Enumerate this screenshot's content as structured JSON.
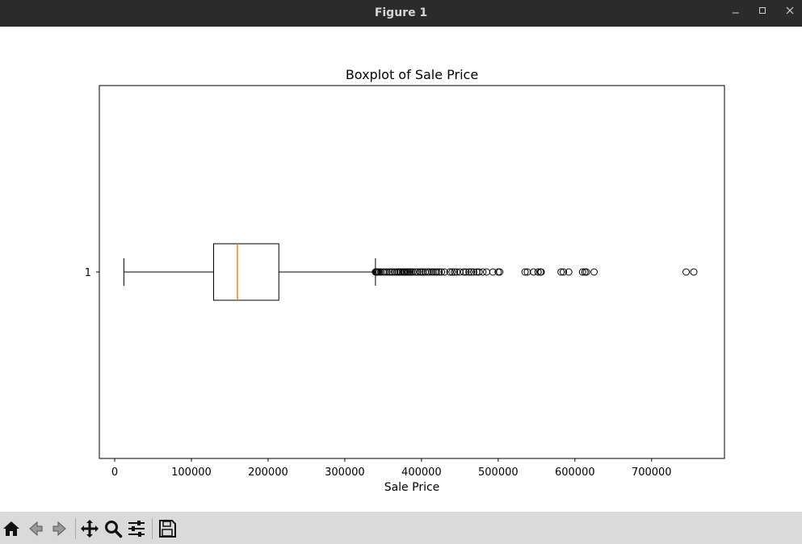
{
  "window": {
    "title": "Figure 1",
    "minimize_icon": "minimize-icon",
    "maximize_icon": "maximize-icon",
    "close_icon": "close-icon"
  },
  "toolbar": {
    "buttons": [
      "home-icon",
      "back-icon",
      "forward-icon",
      "pan-icon",
      "zoom-icon",
      "configure-subplots-icon",
      "save-icon"
    ]
  },
  "colors": {
    "titlebar": "#2b2b2b",
    "toolbar": "#dadada",
    "median": "#ff7f0e",
    "box": "#000000"
  },
  "chart_data": {
    "type": "boxplot",
    "orientation": "horizontal",
    "title": "Boxplot of Sale Price",
    "xlabel": "Sale Price",
    "ylabel": "",
    "xlim": [
      -20000,
      795000
    ],
    "ylim": [
      0.5,
      1.5
    ],
    "xticks": [
      0,
      100000,
      200000,
      300000,
      400000,
      500000,
      600000,
      700000
    ],
    "yticks": [
      1
    ],
    "ytick_labels": [
      "1"
    ],
    "grid": false,
    "series": [
      {
        "category": "1",
        "whisker_low": 12000,
        "q1": 129000,
        "median": 160000,
        "q3": 214000,
        "whisker_high": 340000,
        "outliers": [
          340000,
          341000,
          342000,
          343000,
          345000,
          347000,
          350000,
          352000,
          355000,
          358000,
          360000,
          362000,
          365000,
          368000,
          370000,
          372000,
          373000,
          375000,
          377000,
          378000,
          380000,
          382000,
          383000,
          385000,
          387000,
          389000,
          392000,
          395000,
          398000,
          400000,
          402000,
          405000,
          408000,
          410000,
          413000,
          415000,
          418000,
          420000,
          423000,
          426000,
          430000,
          437000,
          440000,
          443000,
          446000,
          450000,
          455000,
          458000,
          462000,
          465000,
          468000,
          472000,
          475000,
          480000,
          485000,
          493000,
          500000,
          502000,
          535000,
          538000,
          546000,
          552000,
          555000,
          556000,
          582000,
          585000,
          592000,
          610000,
          613000,
          615000,
          625000,
          745000,
          755000
        ]
      }
    ]
  }
}
